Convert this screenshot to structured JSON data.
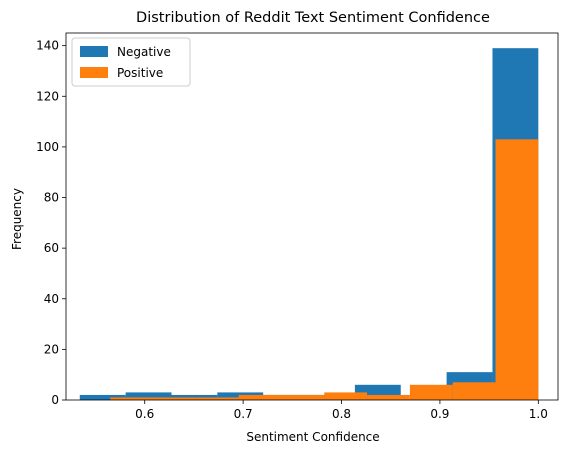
{
  "chart_data": {
    "type": "bar",
    "title": "Distribution of Reddit Text Sentiment Confidence",
    "xlabel": "Sentiment Confidence",
    "ylabel": "Frequency",
    "xlim": [
      0.52,
      1.02
    ],
    "ylim": [
      0,
      145
    ],
    "xticks": [
      "0.6",
      "0.7",
      "0.8",
      "0.9",
      "1.0"
    ],
    "xtick_values": [
      0.6,
      0.7,
      0.8,
      0.9,
      1.0
    ],
    "yticks": [
      "0",
      "20",
      "40",
      "60",
      "80",
      "100",
      "120",
      "140"
    ],
    "ytick_values": [
      0,
      20,
      40,
      60,
      80,
      100,
      120,
      140
    ],
    "legend_position": "top-left",
    "series": [
      {
        "name": "Negative",
        "color": "#1f77b4",
        "bin_edges": [
          0.534,
          0.5806,
          0.6272,
          0.6738,
          0.7204,
          0.767,
          0.8136,
          0.8602,
          0.9068,
          0.9534,
          1.0
        ],
        "values": [
          2,
          3,
          2,
          3,
          2,
          2,
          6,
          0,
          11,
          139
        ]
      },
      {
        "name": "Positive",
        "color": "#ff7f0e",
        "bin_edges": [
          0.565,
          0.6085,
          0.652,
          0.6955,
          0.739,
          0.7825,
          0.826,
          0.8695,
          0.913,
          0.9565,
          1.0
        ],
        "values": [
          1,
          1,
          1,
          2,
          2,
          3,
          2,
          6,
          7,
          103
        ]
      }
    ]
  }
}
